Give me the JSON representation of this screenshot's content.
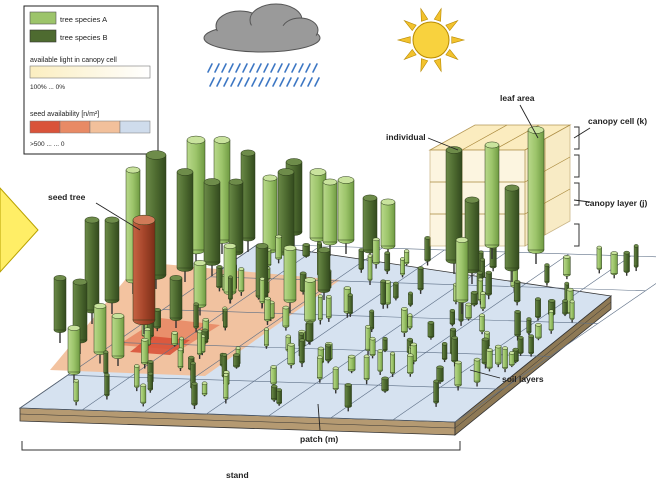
{
  "legend": {
    "species_a": "tree species A",
    "species_b": "tree species B",
    "light_title": "available light in canopy cell",
    "light_range": "100% ... 0%",
    "seed_title": "seed availability [n/m²]",
    "seed_range": ">500 ... ... 0"
  },
  "labels": {
    "seed_tree": "seed tree",
    "individual": "individual",
    "leaf_area": "leaf area",
    "canopy_cell": "canopy cell (k)",
    "canopy_layer": "canopy layer (j)",
    "soil_layers": "soil layers",
    "patch": "patch (m)",
    "stand": "stand"
  },
  "colors": {
    "species_a": "#9cc46a",
    "species_b": "#4e6b30",
    "light_high": "#fbeec0",
    "seed_high": "#d9533a",
    "seed_mid": "#f2c09b",
    "seed_low": "#cfdcec",
    "ground_empty": "#d6e2f0",
    "seed_tree": "#a5452a",
    "arrow": "#ffee66"
  },
  "icons": {
    "cloud": "cloud-icon",
    "rain": "rain-icon",
    "sun": "sun-icon",
    "arrow": "arrow-icon"
  }
}
